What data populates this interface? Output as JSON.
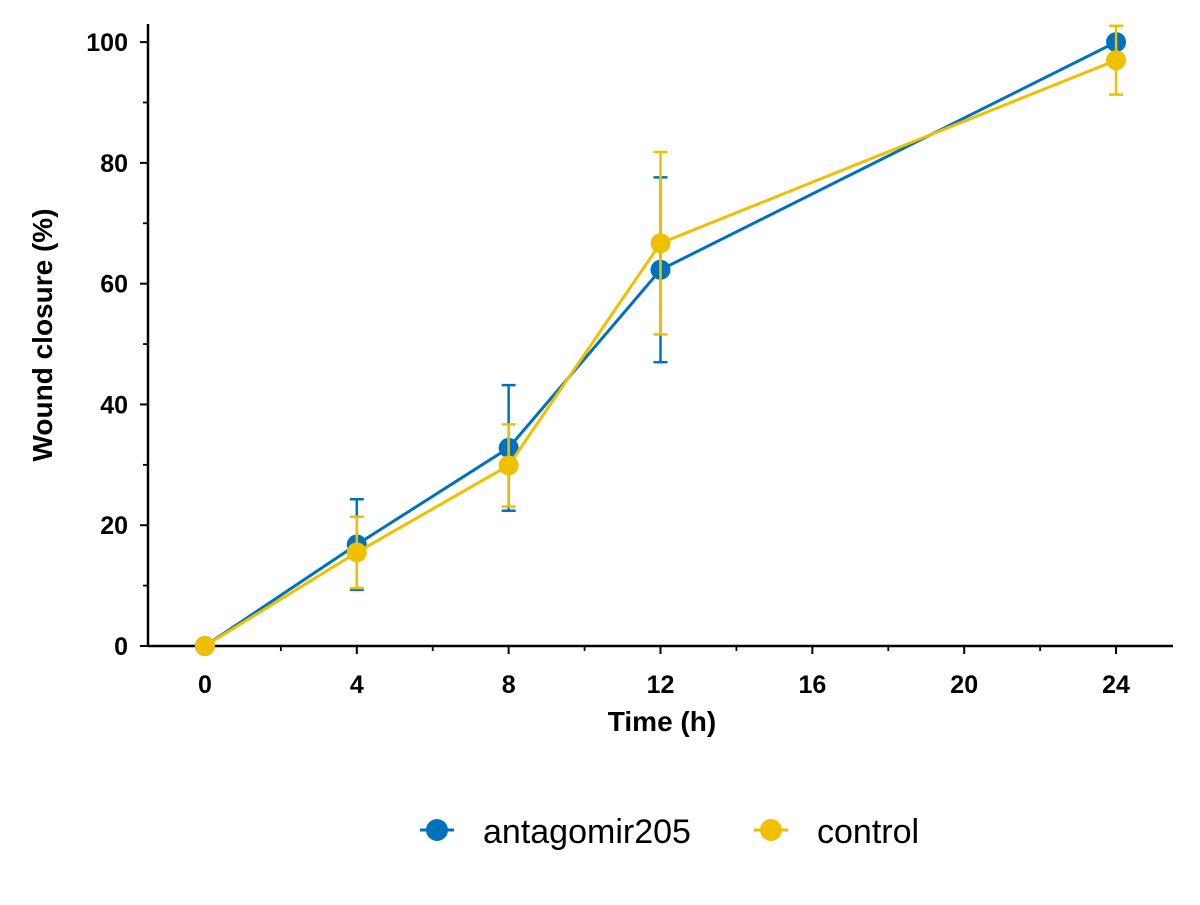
{
  "chart_data": {
    "type": "line",
    "title": "",
    "xlabel": "Time (h)",
    "ylabel": "Wound closure (%)",
    "x": [
      0,
      4,
      8,
      12,
      24
    ],
    "xlim": [
      -1.5,
      25.5
    ],
    "ylim": [
      0,
      103
    ],
    "x_ticks": [
      0,
      4,
      8,
      12,
      16,
      20,
      24
    ],
    "x_minor_ticks": [
      2,
      6,
      10,
      14,
      18,
      22
    ],
    "y_ticks": [
      0,
      20,
      40,
      60,
      80,
      100
    ],
    "y_minor_ticks": [
      10,
      30,
      50,
      70,
      90
    ],
    "grid": false,
    "legend_position": "bottom",
    "series": [
      {
        "name": "antagomir205",
        "color": "#0072BD",
        "values": [
          0,
          16.8,
          32.8,
          62.3,
          100
        ],
        "error": [
          0,
          7.5,
          10.4,
          15.3,
          0
        ]
      },
      {
        "name": "control",
        "color": "#EFC000",
        "values": [
          0,
          15.5,
          29.9,
          66.7,
          97.0
        ],
        "error": [
          0,
          5.9,
          6.8,
          15.1,
          5.7
        ]
      }
    ]
  }
}
